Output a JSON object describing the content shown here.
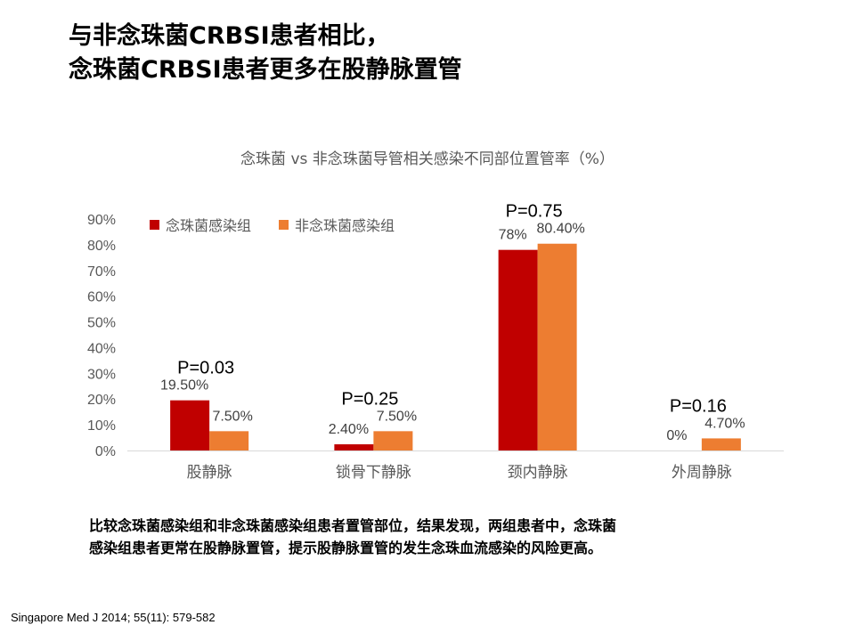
{
  "slide": {
    "title_line1": "与非念珠菌CRBSI患者相比，",
    "title_line2": "念珠菌CRBSI患者更多在股静脉置管",
    "conclusion_line1": "比较念珠菌感染组和非念珠菌感染组患者置管部位，结果发现，两组患者中，念珠菌",
    "conclusion_line2": "感染组患者更常在股静脉置管，提示股静脉置管的发生念珠血流感染的风险更高。",
    "citation": "Singapore Med J 2014; 55(11): 579-582"
  },
  "chart_data": {
    "type": "bar",
    "title": "念珠菌 vs 非念珠菌导管相关感染不同部位置管率（%）",
    "categories": [
      "股静脉",
      "锁骨下静脉",
      "颈内静脉",
      "外周静脉"
    ],
    "series": [
      {
        "name": "念珠菌感染组",
        "color": "#c00000",
        "values": [
          19.5,
          2.4,
          78,
          0
        ],
        "labels": [
          "19.50%",
          "2.40%",
          "78%",
          "0%"
        ]
      },
      {
        "name": "非念珠菌感染组",
        "color": "#ed7d31",
        "values": [
          7.5,
          7.5,
          80.4,
          4.7
        ],
        "labels": [
          "7.50%",
          "7.50%",
          "80.40%",
          "4.70%"
        ]
      }
    ],
    "p_values": [
      "P=0.03",
      "P=0.25",
      "P=0.75",
      "P=0.16"
    ],
    "yticks": [
      "0%",
      "10%",
      "20%",
      "30%",
      "40%",
      "50%",
      "60%",
      "70%",
      "80%",
      "90%"
    ],
    "ylim": [
      0,
      90
    ],
    "legend_position": "top-left",
    "grid": false
  }
}
